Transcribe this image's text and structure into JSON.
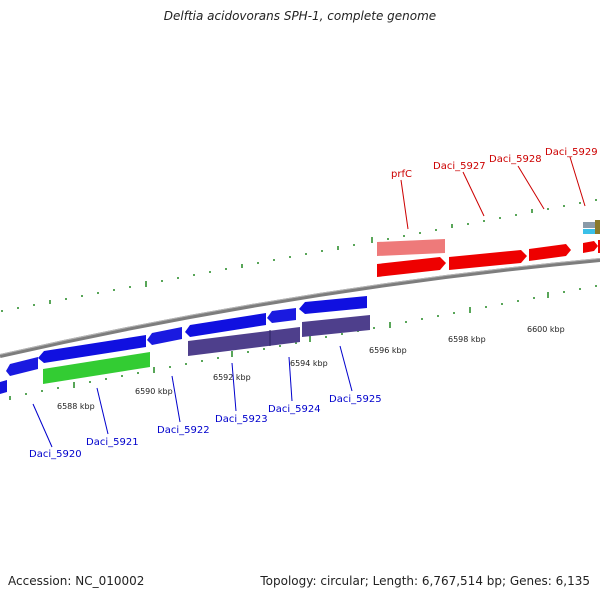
{
  "title": "Delftia acidovorans SPH-1, complete genome",
  "footer": {
    "accession": "Accession: NC_010002",
    "topology": "Topology: circular; Length: 6,767,514 bp; Genes: 6,135"
  },
  "colors": {
    "backbone": "#8a8a8a",
    "tick": "#2f8f2f",
    "blue_gene": "#1010e0",
    "blue_gene_alt": "#2020c8",
    "purple_gene": "#4e3f8c",
    "green_gene": "#33cc33",
    "red_gene": "#ee0000",
    "pink_gene": "#ee7a7a",
    "blue_label": "#0000cc",
    "red_label": "#cc0000"
  },
  "kbp_labels": [
    "6588 kbp",
    "6590 kbp",
    "6592 kbp",
    "6594 kbp",
    "6596 kbp",
    "6598 kbp",
    "6600 kbp"
  ],
  "blue_gene_labels": [
    "Daci_5920",
    "Daci_5921",
    "Daci_5922",
    "Daci_5923",
    "Daci_5924",
    "Daci_5925"
  ],
  "red_gene_labels": [
    "prfC",
    "Daci_5927",
    "Daci_5928",
    "Daci_5929"
  ]
}
